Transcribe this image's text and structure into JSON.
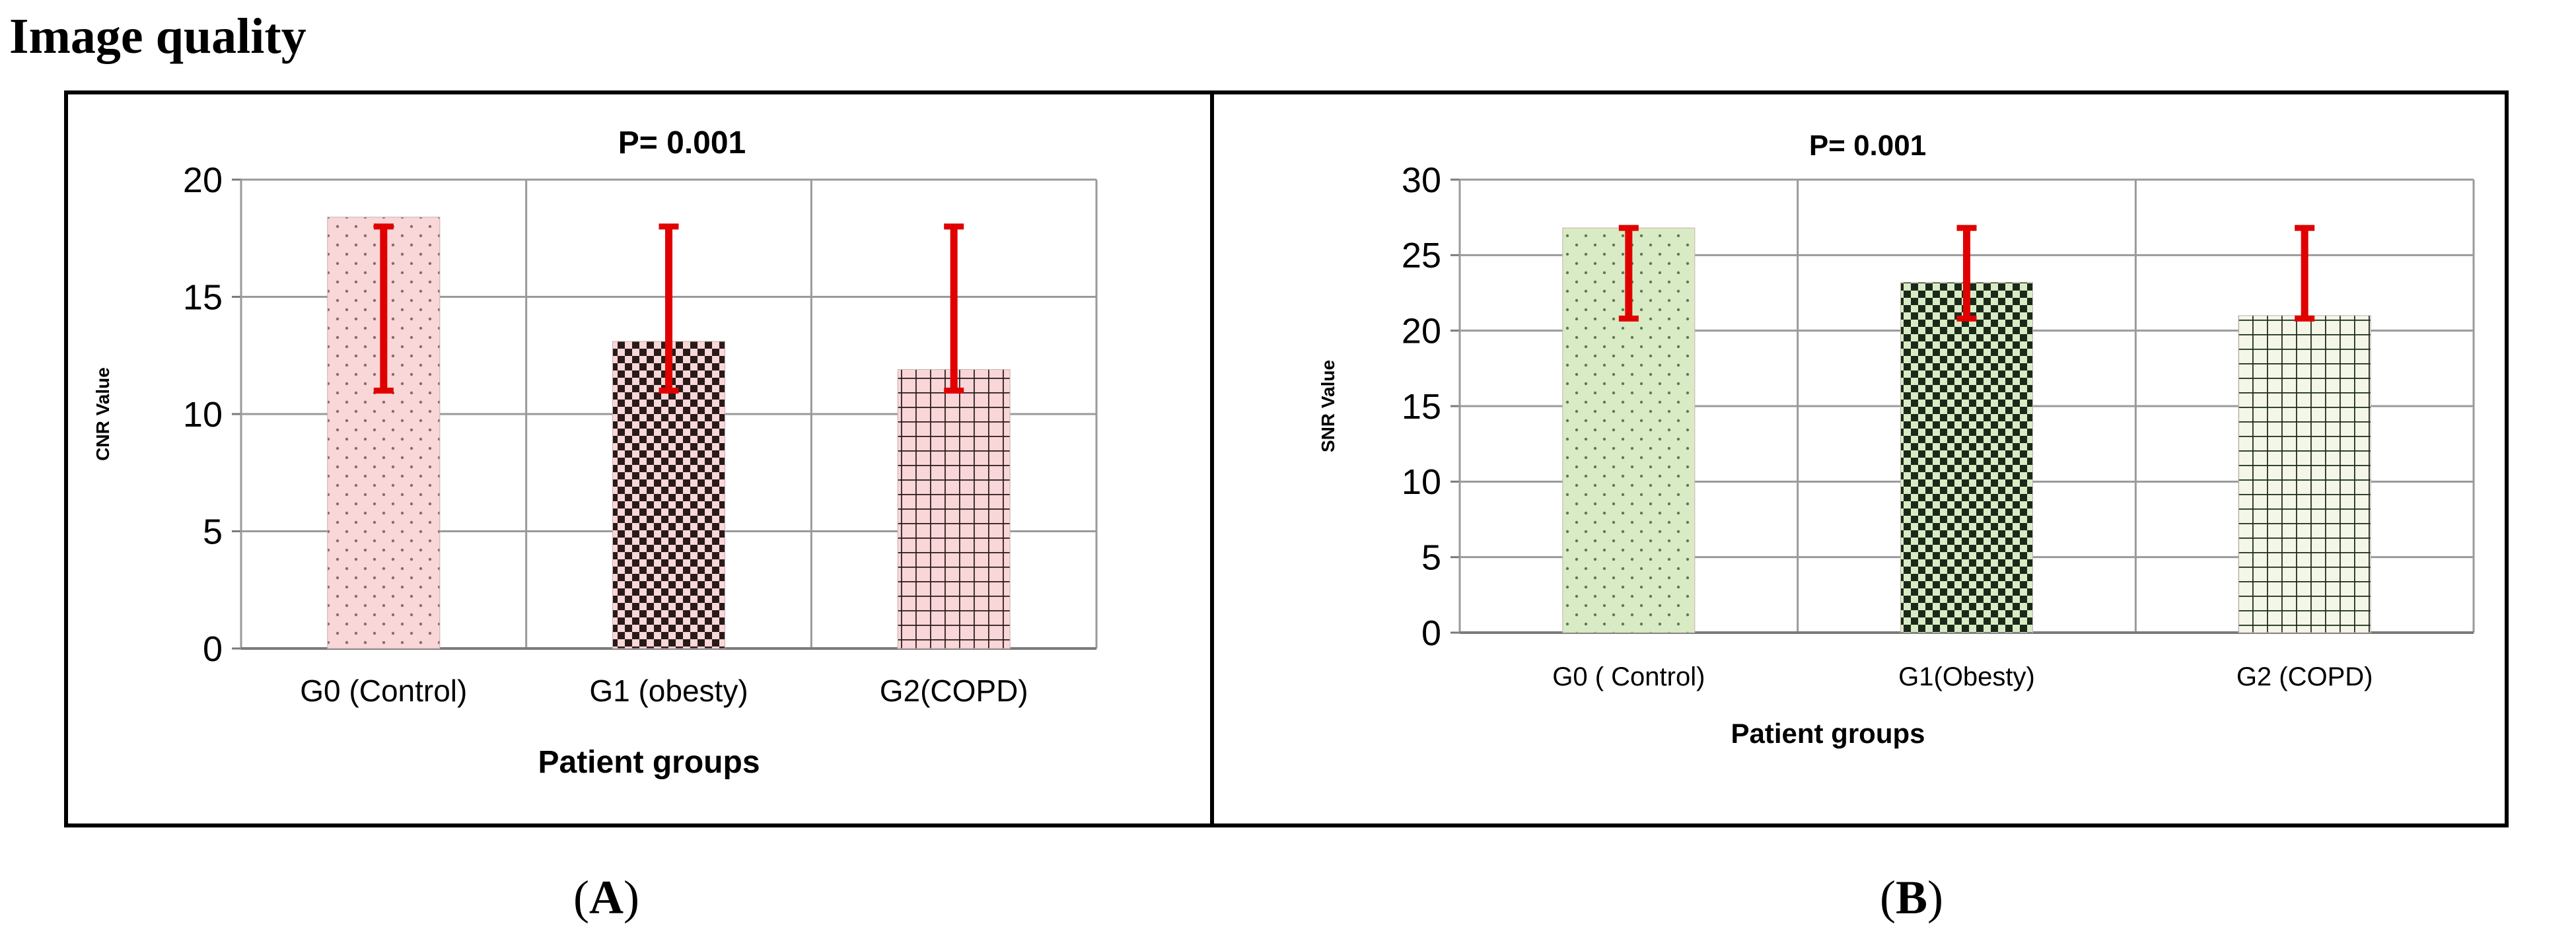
{
  "heading": "Image quality",
  "chart_data": [
    {
      "type": "bar",
      "panel_label": "A",
      "title": "P= 0.001",
      "xlabel": "Patient groups",
      "ylabel": "CNR Value",
      "categories": [
        "G0 (Control)",
        "G1 (obesty)",
        "G2(COPD)"
      ],
      "values": [
        18.4,
        13.1,
        11.9
      ],
      "error_low": [
        11.0,
        11.0,
        11.0
      ],
      "error_high": [
        18.0,
        18.0,
        18.0
      ],
      "ylim": [
        0,
        20
      ],
      "yticks": [
        0,
        5,
        10,
        15,
        20
      ],
      "grid": true,
      "colors": {
        "bar_fill": "#f9d6d8",
        "bar_pattern": "#2a1a1a",
        "error_bar": "#e00000"
      },
      "patterns": [
        "dots",
        "checker",
        "grid"
      ]
    },
    {
      "type": "bar",
      "panel_label": "B",
      "title": "P= 0.001",
      "xlabel": "Patient groups",
      "ylabel": "SNR Value",
      "categories": [
        "G0 ( Control)",
        "G1(Obesty)",
        "G2 (COPD)"
      ],
      "values": [
        26.8,
        23.2,
        21.0
      ],
      "error_low": [
        20.8,
        20.8,
        20.8
      ],
      "error_high": [
        26.8,
        26.8,
        26.8
      ],
      "ylim": [
        0,
        30
      ],
      "yticks": [
        0,
        5,
        10,
        15,
        20,
        25,
        30
      ],
      "grid": true,
      "colors": {
        "bar_fill": "#d9ebc4",
        "bar_pattern": "#1a2a1a",
        "error_bar": "#e00000"
      },
      "patterns": [
        "dots",
        "checker",
        "grid"
      ]
    }
  ]
}
